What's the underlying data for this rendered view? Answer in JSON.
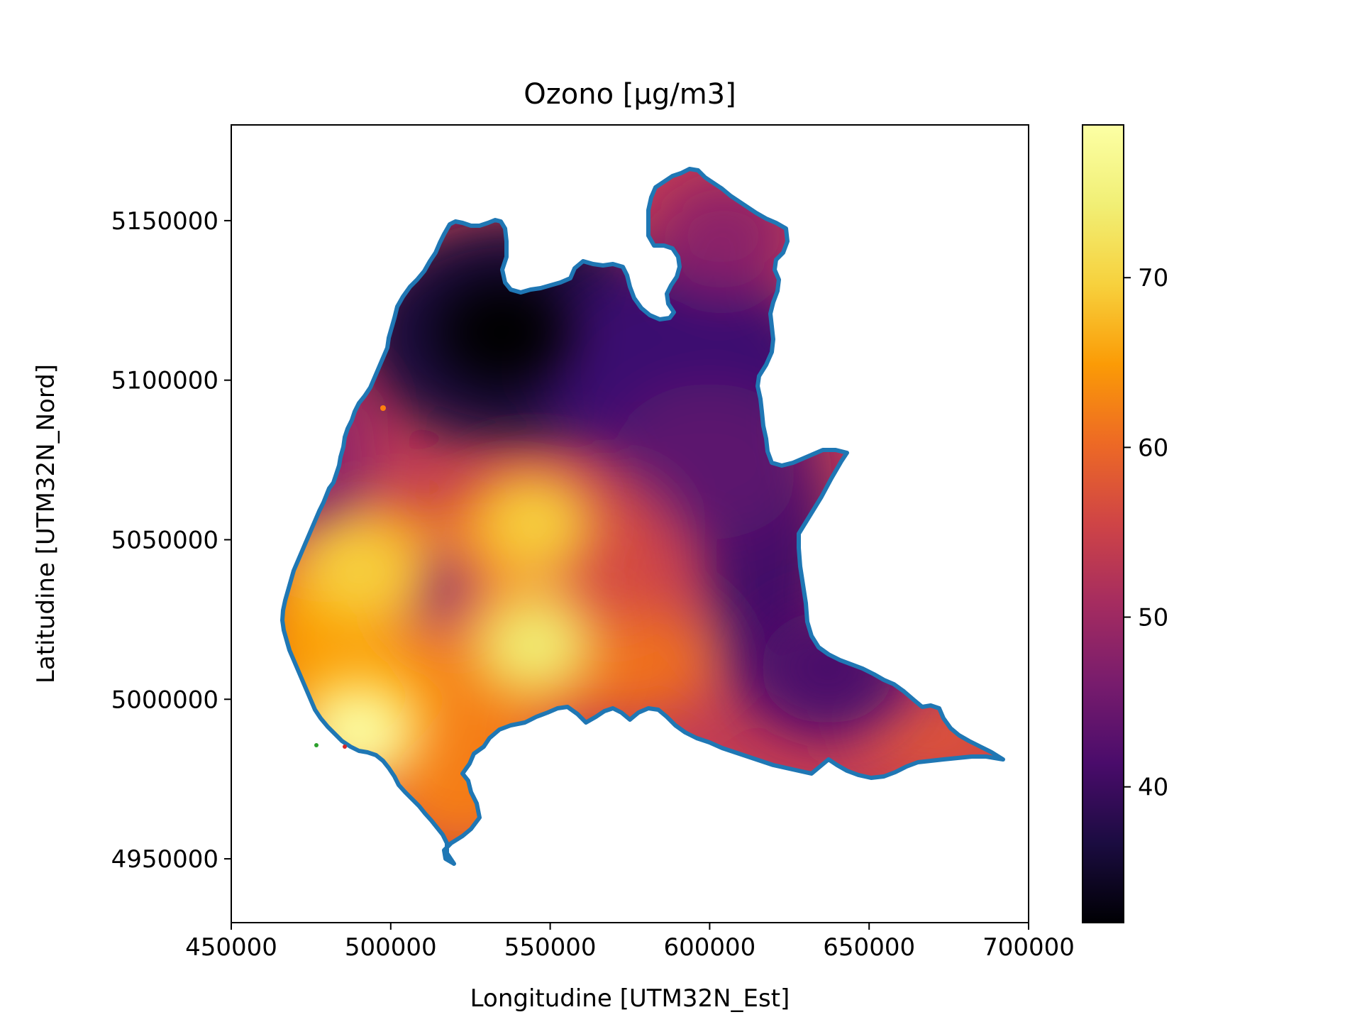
{
  "title": "Ozono [µg/m3]",
  "x_axis": {
    "label": "Longitudine [UTM32N_Est]",
    "range": [
      450000,
      700000
    ],
    "ticks": [
      450000,
      500000,
      550000,
      600000,
      650000,
      700000
    ],
    "tick_labels": [
      "450000",
      "500000",
      "550000",
      "600000",
      "650000",
      "700000"
    ]
  },
  "y_axis": {
    "label": "Latitudine [UTM32N_Nord]",
    "range": [
      4930000,
      5180000
    ],
    "ticks": [
      4950000,
      5000000,
      5050000,
      5100000,
      5150000
    ],
    "tick_labels": [
      "4950000",
      "5000000",
      "5050000",
      "5100000",
      "5150000"
    ]
  },
  "colorbar": {
    "colormap": "inferno",
    "range": [
      32,
      79
    ],
    "ticks": [
      40,
      50,
      60,
      70
    ],
    "tick_labels": [
      "40",
      "50",
      "60",
      "70"
    ]
  },
  "region_outline_color": "#1f77b4",
  "hotspots": [
    {
      "name": "max-south-west",
      "x": 490000,
      "y": 4990000,
      "value": 78
    },
    {
      "name": "max-center",
      "x": 545000,
      "y": 5017000,
      "value": 76
    },
    {
      "name": "high-center-north",
      "x": 545000,
      "y": 5055000,
      "value": 71
    },
    {
      "name": "high-west",
      "x": 490000,
      "y": 5040000,
      "value": 70
    },
    {
      "name": "min-north",
      "x": 535000,
      "y": 5115000,
      "value": 33
    },
    {
      "name": "low-east",
      "x": 637000,
      "y": 5010000,
      "value": 43
    }
  ]
}
